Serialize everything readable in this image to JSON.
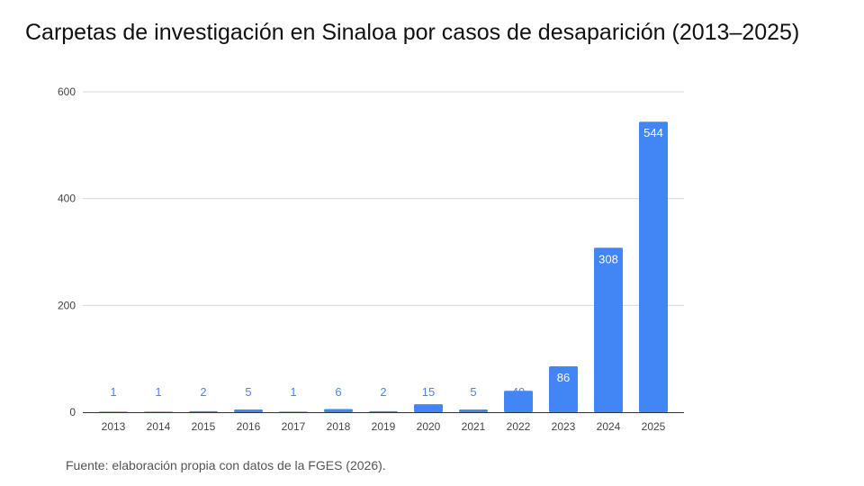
{
  "title": "Carpetas de investigación en Sinaloa por casos de desaparición (2013–2025)",
  "footer": "Fuente: elaboración propia con datos de la FGES (2026).",
  "colors": {
    "bar": "#4285f4",
    "label_outside": "#4a86e8",
    "label_inside": "#ffffff",
    "grid": "#d9d9d9",
    "axis": "#333333"
  },
  "chart_data": {
    "type": "bar",
    "title": "Carpetas de investigación en Sinaloa por casos de desaparición (2013–2025)",
    "xlabel": "",
    "ylabel": "",
    "categories": [
      "2013",
      "2014",
      "2015",
      "2016",
      "2017",
      "2018",
      "2019",
      "2020",
      "2021",
      "2022",
      "2023",
      "2024",
      "2025"
    ],
    "values": [
      1,
      1,
      2,
      5,
      1,
      6,
      2,
      15,
      5,
      40,
      86,
      308,
      544
    ],
    "ylim": [
      0,
      600
    ],
    "yticks": [
      0,
      200,
      400,
      600
    ],
    "grid": true,
    "legend": "none"
  }
}
